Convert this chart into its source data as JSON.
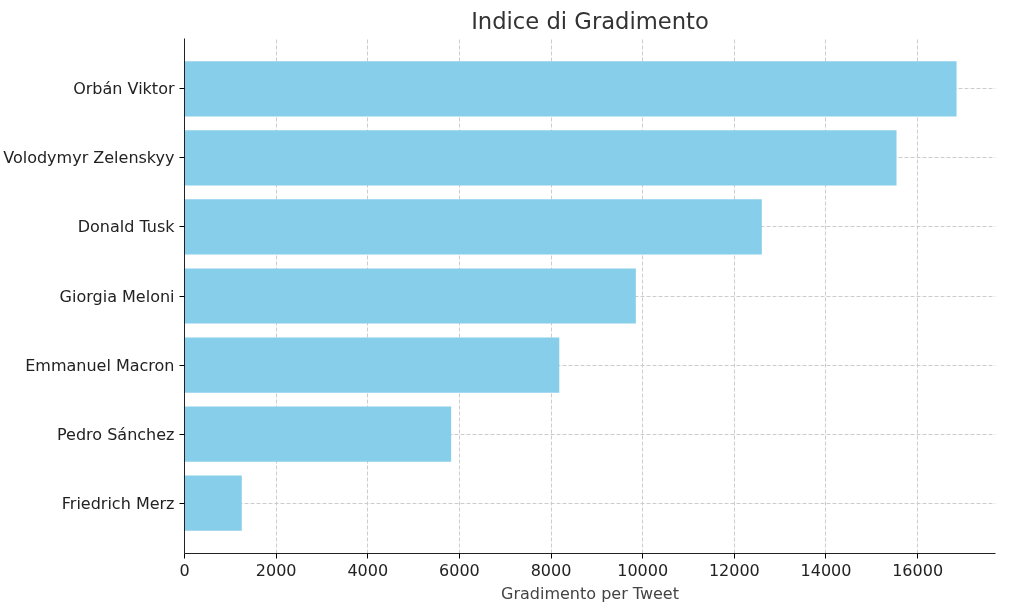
{
  "chart_data": {
    "type": "bar",
    "orientation": "horizontal",
    "title": "Indice di Gradimento",
    "xlabel": "Gradimento per Tweet",
    "categories": [
      "Orbán Viktor",
      "Volodymyr Zelenskyy",
      "Donald Tusk",
      "Giorgia Meloni",
      "Emmanuel Macron",
      "Pedro Sánchez",
      "Friedrich Merz"
    ],
    "values": [
      16850,
      15540,
      12600,
      9850,
      8180,
      5820,
      1250
    ],
    "color": "#87ceeb",
    "xlim": [
      0,
      17700
    ],
    "xticks": [
      0,
      2000,
      4000,
      6000,
      8000,
      10000,
      12000,
      14000,
      16000
    ],
    "grid": true
  }
}
